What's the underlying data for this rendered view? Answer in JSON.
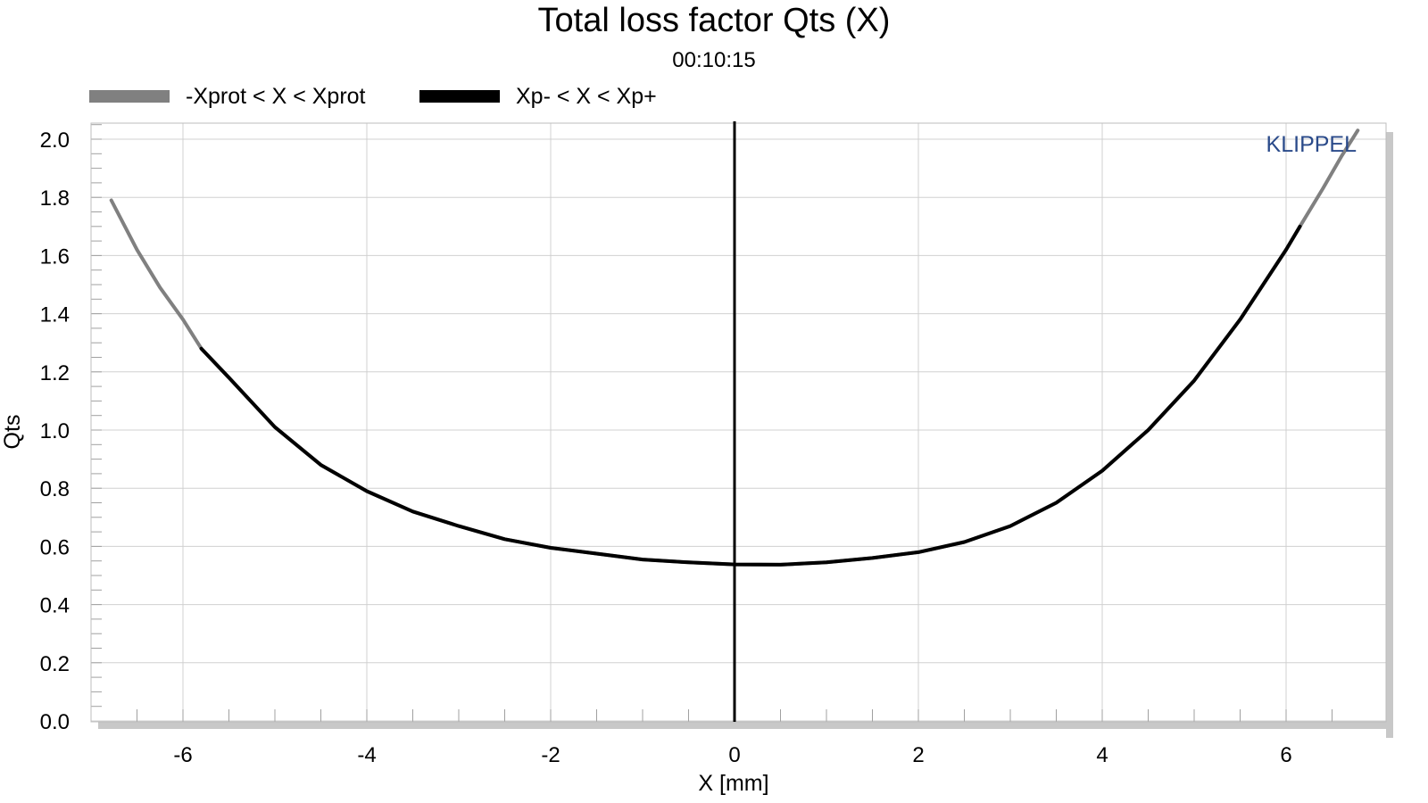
{
  "chart_data": {
    "type": "line",
    "title": "Total loss factor Qts (X)",
    "subtitle": "00:10:15",
    "xlabel": "X [mm]",
    "ylabel": "Qts",
    "xlim": [
      -7.0,
      7.0
    ],
    "ylim": [
      0.0,
      2.05
    ],
    "x_ticks": [
      -6,
      -4,
      -2,
      0,
      2,
      4,
      6
    ],
    "x_tick_labels": [
      "-6",
      "-4",
      "-2",
      "0",
      "2",
      "4",
      "6"
    ],
    "y_ticks": [
      0.0,
      0.2,
      0.4,
      0.6,
      0.8,
      1.0,
      1.2,
      1.4,
      1.6,
      1.8,
      2.0
    ],
    "y_tick_labels": [
      "0.0",
      "0.2",
      "0.4",
      "0.6",
      "0.8",
      "1.0",
      "1.2",
      "1.4",
      "1.6",
      "1.8",
      "2.0"
    ],
    "grid": true,
    "legend_position": "top-left",
    "watermark": "KLIPPEL",
    "series": [
      {
        "name": "-Xprot < X < Xprot",
        "color": "#808080",
        "x": [
          -6.78,
          -6.5,
          -6.25,
          -6.0,
          -5.8,
          -5.5,
          -5.0,
          -4.5,
          -4.0,
          -3.5,
          -3.0,
          -2.5,
          -2.0,
          -1.5,
          -1.0,
          -0.5,
          0.0,
          0.5,
          1.0,
          1.5,
          2.0,
          2.5,
          3.0,
          3.5,
          4.0,
          4.5,
          5.0,
          5.5,
          6.0,
          6.15,
          6.4,
          6.6,
          6.78
        ],
        "y": [
          1.79,
          1.62,
          1.49,
          1.38,
          1.28,
          1.18,
          1.01,
          0.88,
          0.79,
          0.72,
          0.67,
          0.625,
          0.595,
          0.575,
          0.555,
          0.545,
          0.538,
          0.537,
          0.545,
          0.56,
          0.58,
          0.615,
          0.67,
          0.75,
          0.86,
          1.0,
          1.17,
          1.38,
          1.62,
          1.7,
          1.83,
          1.94,
          2.03
        ]
      },
      {
        "name": "Xp- < X < Xp+",
        "color": "#000000",
        "x": [
          -5.8,
          -5.5,
          -5.0,
          -4.5,
          -4.0,
          -3.5,
          -3.0,
          -2.5,
          -2.0,
          -1.5,
          -1.0,
          -0.5,
          0.0,
          0.5,
          1.0,
          1.5,
          2.0,
          2.5,
          3.0,
          3.5,
          4.0,
          4.5,
          5.0,
          5.5,
          6.0,
          6.15
        ],
        "y": [
          1.28,
          1.18,
          1.01,
          0.88,
          0.79,
          0.72,
          0.67,
          0.625,
          0.595,
          0.575,
          0.555,
          0.545,
          0.538,
          0.537,
          0.545,
          0.56,
          0.58,
          0.615,
          0.67,
          0.75,
          0.86,
          1.0,
          1.17,
          1.38,
          1.62,
          1.7
        ]
      }
    ],
    "vertical_marker_x": 0
  }
}
